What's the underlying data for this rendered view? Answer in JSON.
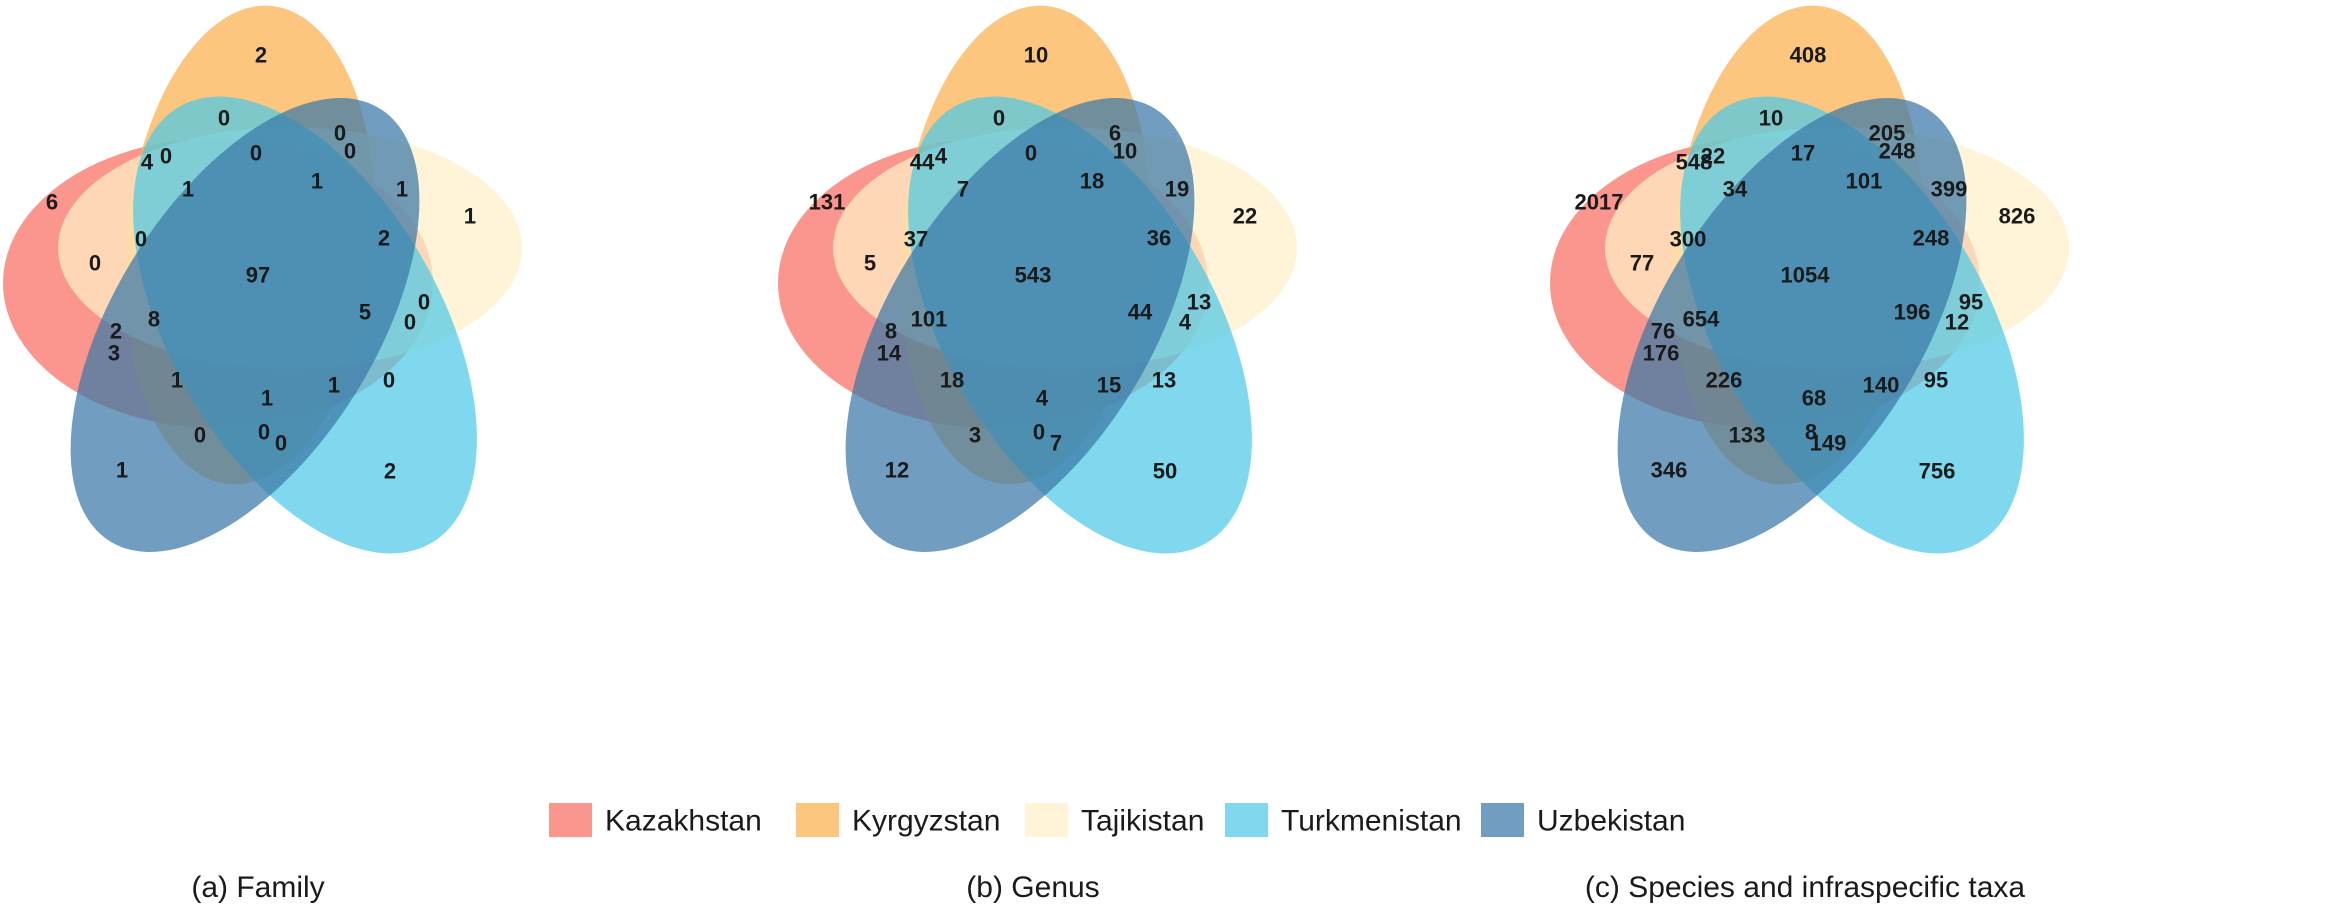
{
  "sets": [
    {
      "key": "kaz",
      "name": "Kazakhstan",
      "color": "#fa6e62"
    },
    {
      "key": "kyr",
      "name": "Kyrgyzstan",
      "color": "#fbb04d"
    },
    {
      "key": "taj",
      "name": "Tajikistan",
      "color": "#fff0c7"
    },
    {
      "key": "tur",
      "name": "Turkmenistan",
      "color": "#4ec9e6"
    },
    {
      "key": "uzb",
      "name": "Uzbekistan",
      "color": "#3a78a8"
    }
  ],
  "panels": [
    {
      "caption": "(a) Family",
      "counts": {
        "kaz_only": "6",
        "kyr_only": "2",
        "taj_only": "1",
        "tur_only": "2",
        "uzb_only": "1",
        "kaz_kyr_outer": "4",
        "kaz_kyr_inner": "0",
        "kyr_taj_top": "0",
        "kyr_top_center": "0",
        "kyr_mid_center": "0",
        "kyr_taj_inner": "0",
        "kyr_left": "1",
        "center_top": "1",
        "right_upper": "1",
        "kaz_taj_left": "0",
        "kyr_left_lower": "0",
        "right_mid": "2",
        "center": "97",
        "taj_tur_right": "0",
        "taj_tur_inner": "0",
        "right_center": "5",
        "left_lower_a": "2",
        "left_lower_b": "3",
        "left_center_low": "8",
        "tur_uzb_right": "0",
        "lower_left": "1",
        "lower_center": "1",
        "lower_right": "1",
        "uzb_kyr_low": "0",
        "bottom_center": "0",
        "bottom_right": "0"
      }
    },
    {
      "caption": "(b) Genus",
      "counts": {
        "kaz_only": "131",
        "kyr_only": "10",
        "taj_only": "22",
        "tur_only": "50",
        "uzb_only": "12",
        "kaz_kyr_outer": "44",
        "kaz_kyr_inner": "4",
        "kyr_taj_top": "6",
        "kyr_top_center": "0",
        "kyr_mid_center": "0",
        "kyr_taj_inner": "10",
        "kyr_left": "7",
        "center_top": "18",
        "right_upper": "19",
        "kaz_taj_left": "5",
        "kyr_left_lower": "37",
        "right_mid": "36",
        "center": "543",
        "taj_tur_right": "13",
        "taj_tur_inner": "4",
        "right_center": "44",
        "left_lower_a": "8",
        "left_lower_b": "14",
        "left_center_low": "101",
        "tur_uzb_right": "13",
        "lower_left": "18",
        "lower_center": "4",
        "lower_right": "15",
        "uzb_kyr_low": "3",
        "bottom_center": "0",
        "bottom_right": "7"
      }
    },
    {
      "caption": "(c) Species and infraspecific taxa",
      "counts": {
        "kaz_only": "2017",
        "kyr_only": "408",
        "taj_only": "826",
        "tur_only": "756",
        "uzb_only": "346",
        "kaz_kyr_outer": "548",
        "kaz_kyr_inner": "22",
        "kyr_taj_top": "205",
        "kyr_top_center": "10",
        "kyr_mid_center": "17",
        "kyr_taj_inner": "248",
        "kyr_left": "34",
        "center_top": "101",
        "right_upper": "399",
        "kaz_taj_left": "77",
        "kyr_left_lower": "300",
        "right_mid": "248",
        "center": "1054",
        "taj_tur_right": "95",
        "taj_tur_inner": "12",
        "right_center": "196",
        "left_lower_a": "76",
        "left_lower_b": "176",
        "left_center_low": "654",
        "tur_uzb_right": "95",
        "lower_left": "226",
        "lower_center": "68",
        "lower_right": "140",
        "uzb_kyr_low": "133",
        "bottom_center": "8",
        "bottom_right": "149"
      }
    }
  ]
}
